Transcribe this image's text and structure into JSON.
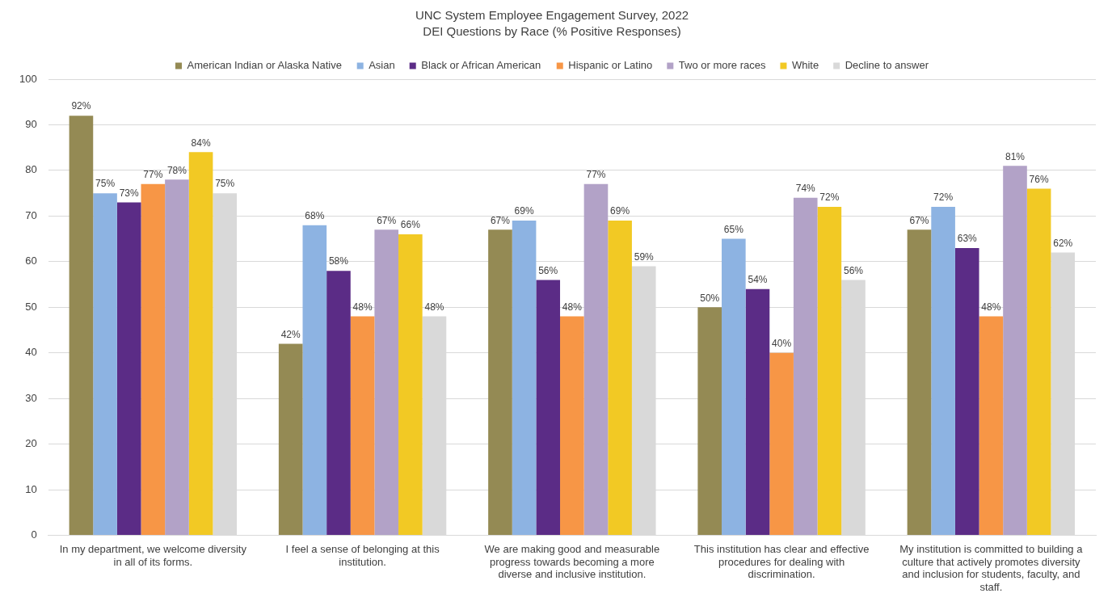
{
  "chart_data": {
    "type": "bar",
    "title": "UNC System Employee Engagement Survey, 2022",
    "subtitle": "DEI Questions by Race (% Positive Responses)",
    "categories": [
      "In my department, we welcome diversity in all of its forms.",
      "I feel a sense of belonging at this institution.",
      "We are making good and measurable progress towards becoming a more diverse and inclusive institution.",
      "This institution has clear and effective procedures for dealing with discrimination.",
      "My institution is committed to building a culture that actively promotes diversity and inclusion for students, faculty, and staff."
    ],
    "series": [
      {
        "name": "American Indian or Alaska Native",
        "color": "#948a54",
        "values": [
          92,
          42,
          67,
          50,
          67
        ],
        "value_labels": [
          "92%",
          "42%",
          "67%",
          "50%",
          "67%"
        ]
      },
      {
        "name": "Asian",
        "color": "#8db3e2",
        "values": [
          75,
          68,
          69,
          65,
          72
        ],
        "value_labels": [
          "75%",
          "68%",
          "69%",
          "65%",
          "72%"
        ]
      },
      {
        "name": "Black or African American",
        "color": "#5b2c86",
        "values": [
          73,
          58,
          56,
          54,
          63
        ],
        "value_labels": [
          "73%",
          "58%",
          "56%",
          "54%",
          "63%"
        ]
      },
      {
        "name": "Hispanic or Latino",
        "color": "#f79646",
        "values": [
          77,
          48,
          48,
          40,
          48
        ],
        "value_labels": [
          "77%",
          "48%",
          "48%",
          "40%",
          "48%"
        ]
      },
      {
        "name": "Two or more races",
        "color": "#b2a2c7",
        "values": [
          78,
          67,
          77,
          74,
          81
        ],
        "value_labels": [
          "78%",
          "67%",
          "77%",
          "74%",
          "81%"
        ]
      },
      {
        "name": "White",
        "color": "#f2c924",
        "values": [
          84,
          66,
          69,
          72,
          76
        ],
        "value_labels": [
          "84%",
          "66%",
          "69%",
          "72%",
          "76%"
        ]
      },
      {
        "name": "Decline to answer",
        "color": "#d9d9d9",
        "values": [
          75,
          48,
          59,
          56,
          62
        ],
        "value_labels": [
          "75%",
          "48%",
          "59%",
          "56%",
          "62%"
        ]
      }
    ],
    "ylim": [
      0,
      100
    ],
    "yticks": [
      0,
      10,
      20,
      30,
      40,
      50,
      60,
      70,
      80,
      90,
      100
    ],
    "grid": "y",
    "legend": "top"
  }
}
